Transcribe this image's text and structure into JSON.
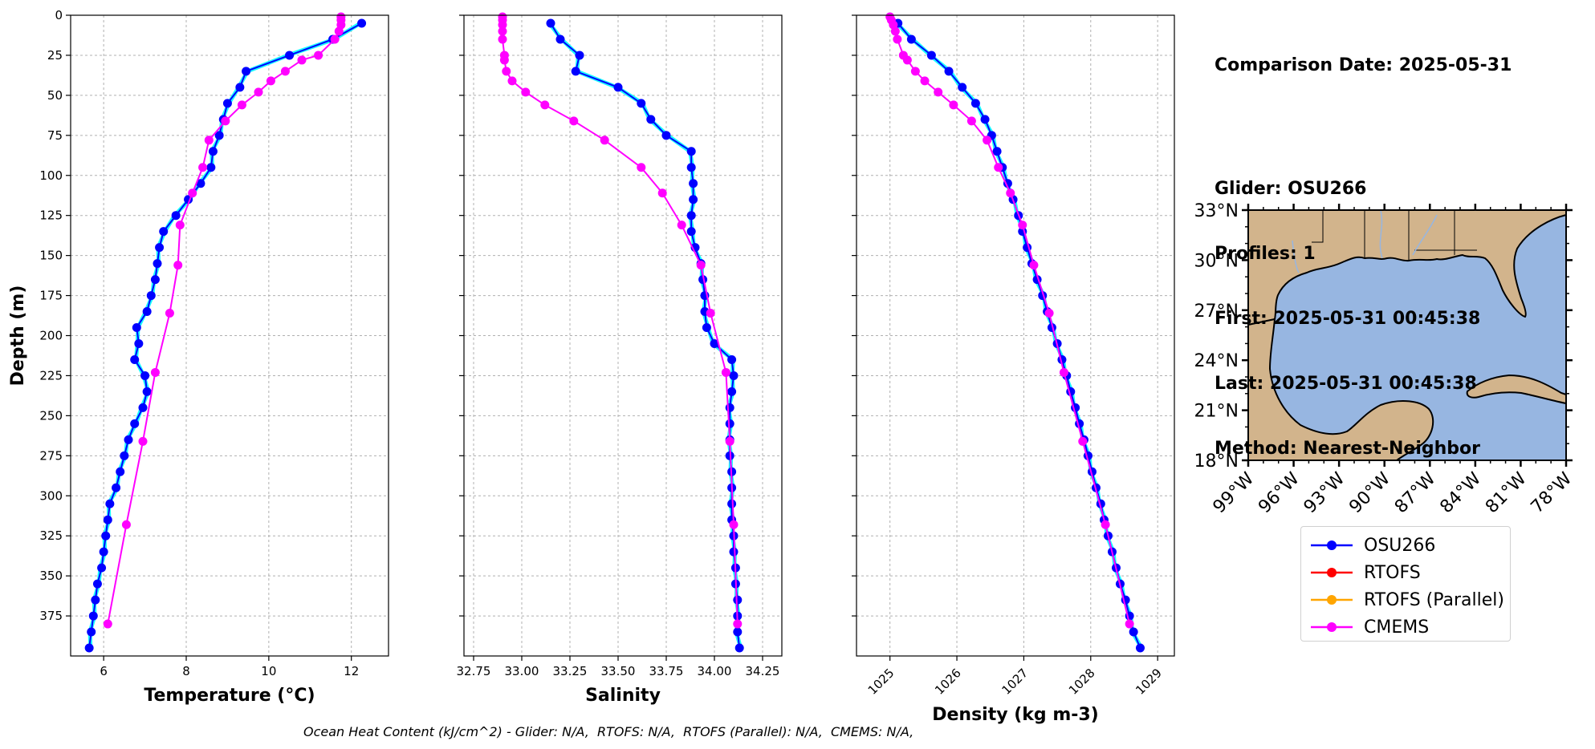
{
  "chart_data": [
    {
      "type": "line",
      "panel": "temperature",
      "xlabel": "Temperature (°C)",
      "ylabel": "Depth (m)",
      "xlim": [
        5.2,
        12.9
      ],
      "ylim": [
        400,
        0
      ],
      "xticks": [
        6,
        8,
        10,
        12
      ],
      "yticks": [
        0,
        25,
        50,
        75,
        100,
        125,
        150,
        175,
        200,
        225,
        250,
        275,
        300,
        325,
        350,
        375
      ],
      "grid": true,
      "series": [
        {
          "name": "OSU266",
          "color": "#0000ff",
          "marker": "circle",
          "x": [
            12.25,
            11.55,
            10.5,
            9.45,
            9.3,
            9.0,
            8.9,
            8.8,
            8.65,
            8.6,
            8.35,
            8.05,
            7.75,
            7.45,
            7.35,
            7.3,
            7.25,
            7.15,
            7.05,
            6.8,
            6.85,
            6.75,
            7.0,
            7.05,
            6.95,
            6.75,
            6.6,
            6.5,
            6.4,
            6.3,
            6.15,
            6.1,
            6.05,
            6.0,
            5.95,
            5.85,
            5.8,
            5.75,
            5.7,
            5.65
          ],
          "y": [
            5,
            15,
            25,
            35,
            45,
            55,
            65,
            75,
            85,
            95,
            105,
            115,
            125,
            135,
            145,
            155,
            165,
            175,
            185,
            195,
            205,
            215,
            225,
            235,
            245,
            255,
            265,
            275,
            285,
            295,
            305,
            315,
            325,
            335,
            345,
            355,
            365,
            375,
            385,
            395
          ]
        },
        {
          "name": "CMEMS",
          "color": "#ff00ff",
          "marker": "circle",
          "x": [
            11.75,
            11.75,
            11.75,
            11.7,
            11.6,
            11.2,
            10.8,
            10.4,
            10.05,
            9.75,
            9.35,
            8.95,
            8.55,
            8.4,
            8.15,
            7.85,
            7.8,
            7.6,
            7.25,
            6.95,
            6.55,
            6.1
          ],
          "y": [
            1,
            3,
            6,
            10,
            15,
            25,
            28,
            35,
            41,
            48,
            56,
            66,
            78,
            95,
            111,
            131,
            156,
            186,
            223,
            266,
            318,
            380
          ]
        }
      ]
    },
    {
      "type": "line",
      "panel": "salinity",
      "xlabel": "Salinity",
      "xlim": [
        32.7,
        34.35
      ],
      "ylim": [
        400,
        0
      ],
      "xticks": [
        "32.75",
        "33.00",
        "33.25",
        "33.50",
        "33.75",
        "34.00",
        "34.25"
      ],
      "grid": true,
      "series": [
        {
          "name": "OSU266",
          "color": "#0000ff",
          "marker": "circle",
          "x": [
            33.15,
            33.2,
            33.3,
            33.28,
            33.5,
            33.62,
            33.67,
            33.75,
            33.88,
            33.88,
            33.89,
            33.89,
            33.88,
            33.88,
            33.9,
            33.93,
            33.94,
            33.95,
            33.95,
            33.96,
            34.0,
            34.09,
            34.1,
            34.09,
            34.08,
            34.08,
            34.08,
            34.08,
            34.09,
            34.09,
            34.09,
            34.09,
            34.1,
            34.1,
            34.11,
            34.11,
            34.12,
            34.12,
            34.12,
            34.13
          ],
          "y": [
            5,
            15,
            25,
            35,
            45,
            55,
            65,
            75,
            85,
            95,
            105,
            115,
            125,
            135,
            145,
            155,
            165,
            175,
            185,
            195,
            205,
            215,
            225,
            235,
            245,
            255,
            265,
            275,
            285,
            295,
            305,
            315,
            325,
            335,
            345,
            355,
            365,
            375,
            385,
            395
          ]
        },
        {
          "name": "CMEMS",
          "color": "#ff00ff",
          "marker": "circle",
          "x": [
            32.9,
            32.9,
            32.9,
            32.9,
            32.9,
            32.91,
            32.91,
            32.92,
            32.95,
            33.02,
            33.12,
            33.27,
            33.43,
            33.62,
            33.73,
            33.83,
            33.93,
            33.98,
            34.06,
            34.08,
            34.1,
            34.12
          ],
          "y": [
            1,
            3,
            6,
            10,
            15,
            25,
            28,
            35,
            41,
            48,
            56,
            66,
            78,
            95,
            111,
            131,
            156,
            186,
            223,
            266,
            318,
            380
          ]
        }
      ]
    },
    {
      "type": "line",
      "panel": "density",
      "xlabel": "Density (kg m-3)",
      "xlim": [
        1024.5,
        1029.25
      ],
      "ylim": [
        400,
        0
      ],
      "xticks": [
        1025,
        1026,
        1027,
        1028,
        1029
      ],
      "grid": true,
      "series": [
        {
          "name": "OSU266",
          "color": "#0000ff",
          "marker": "circle",
          "x": [
            1025.12,
            1025.32,
            1025.62,
            1025.88,
            1026.08,
            1026.28,
            1026.42,
            1026.52,
            1026.6,
            1026.68,
            1026.76,
            1026.84,
            1026.92,
            1026.98,
            1027.05,
            1027.12,
            1027.2,
            1027.28,
            1027.35,
            1027.42,
            1027.5,
            1027.57,
            1027.64,
            1027.7,
            1027.77,
            1027.83,
            1027.9,
            1027.96,
            1028.02,
            1028.08,
            1028.15,
            1028.2,
            1028.26,
            1028.32,
            1028.38,
            1028.44,
            1028.52,
            1028.58,
            1028.64,
            1028.74
          ],
          "y": [
            5,
            15,
            25,
            35,
            45,
            55,
            65,
            75,
            85,
            95,
            105,
            115,
            125,
            135,
            145,
            155,
            165,
            175,
            185,
            195,
            205,
            215,
            225,
            235,
            245,
            255,
            265,
            275,
            285,
            295,
            305,
            315,
            325,
            335,
            345,
            355,
            365,
            375,
            385,
            395
          ]
        },
        {
          "name": "CMEMS",
          "color": "#ff00ff",
          "marker": "circle",
          "x": [
            1025.0,
            1025.02,
            1025.05,
            1025.08,
            1025.11,
            1025.2,
            1025.26,
            1025.38,
            1025.52,
            1025.72,
            1025.95,
            1026.22,
            1026.45,
            1026.62,
            1026.8,
            1026.98,
            1027.15,
            1027.38,
            1027.6,
            1027.88,
            1028.22,
            1028.58
          ],
          "y": [
            1,
            3,
            6,
            10,
            15,
            25,
            28,
            35,
            41,
            48,
            56,
            66,
            78,
            95,
            111,
            131,
            156,
            186,
            223,
            266,
            318,
            380
          ]
        }
      ]
    }
  ],
  "map": {
    "lat_ticks": [
      "33°N",
      "30°N",
      "27°N",
      "24°N",
      "21°N",
      "18°N"
    ],
    "lon_ticks": [
      "99°W",
      "96°W",
      "93°W",
      "90°W",
      "87°W",
      "84°W",
      "81°W",
      "78°W"
    ],
    "colors": {
      "land": "#d2b48c",
      "ocean": "#97b6e1",
      "coast": "#000000",
      "rivers": "#97b6e1"
    }
  },
  "info": {
    "comparison_date": "Comparison Date: 2025-05-31",
    "glider": "Glider: OSU266",
    "profiles": "Profiles: 1",
    "first": "First: 2025-05-31 00:45:38",
    "last": "Last: 2025-05-31 00:45:38",
    "method": "Method: Nearest-Neighbor"
  },
  "legend": [
    {
      "label": "OSU266",
      "color": "#0000ff"
    },
    {
      "label": "RTOFS",
      "color": "#ff0000"
    },
    {
      "label": "RTOFS (Parallel)",
      "color": "#ffa500"
    },
    {
      "label": "CMEMS",
      "color": "#ff00ff"
    }
  ],
  "raw_glider_color": "#00ffff",
  "ohc_text": "Ocean Heat Content (kJ/cm^2) - Glider: N/A,  RTOFS: N/A,  RTOFS (Parallel): N/A,  CMEMS: N/A,"
}
